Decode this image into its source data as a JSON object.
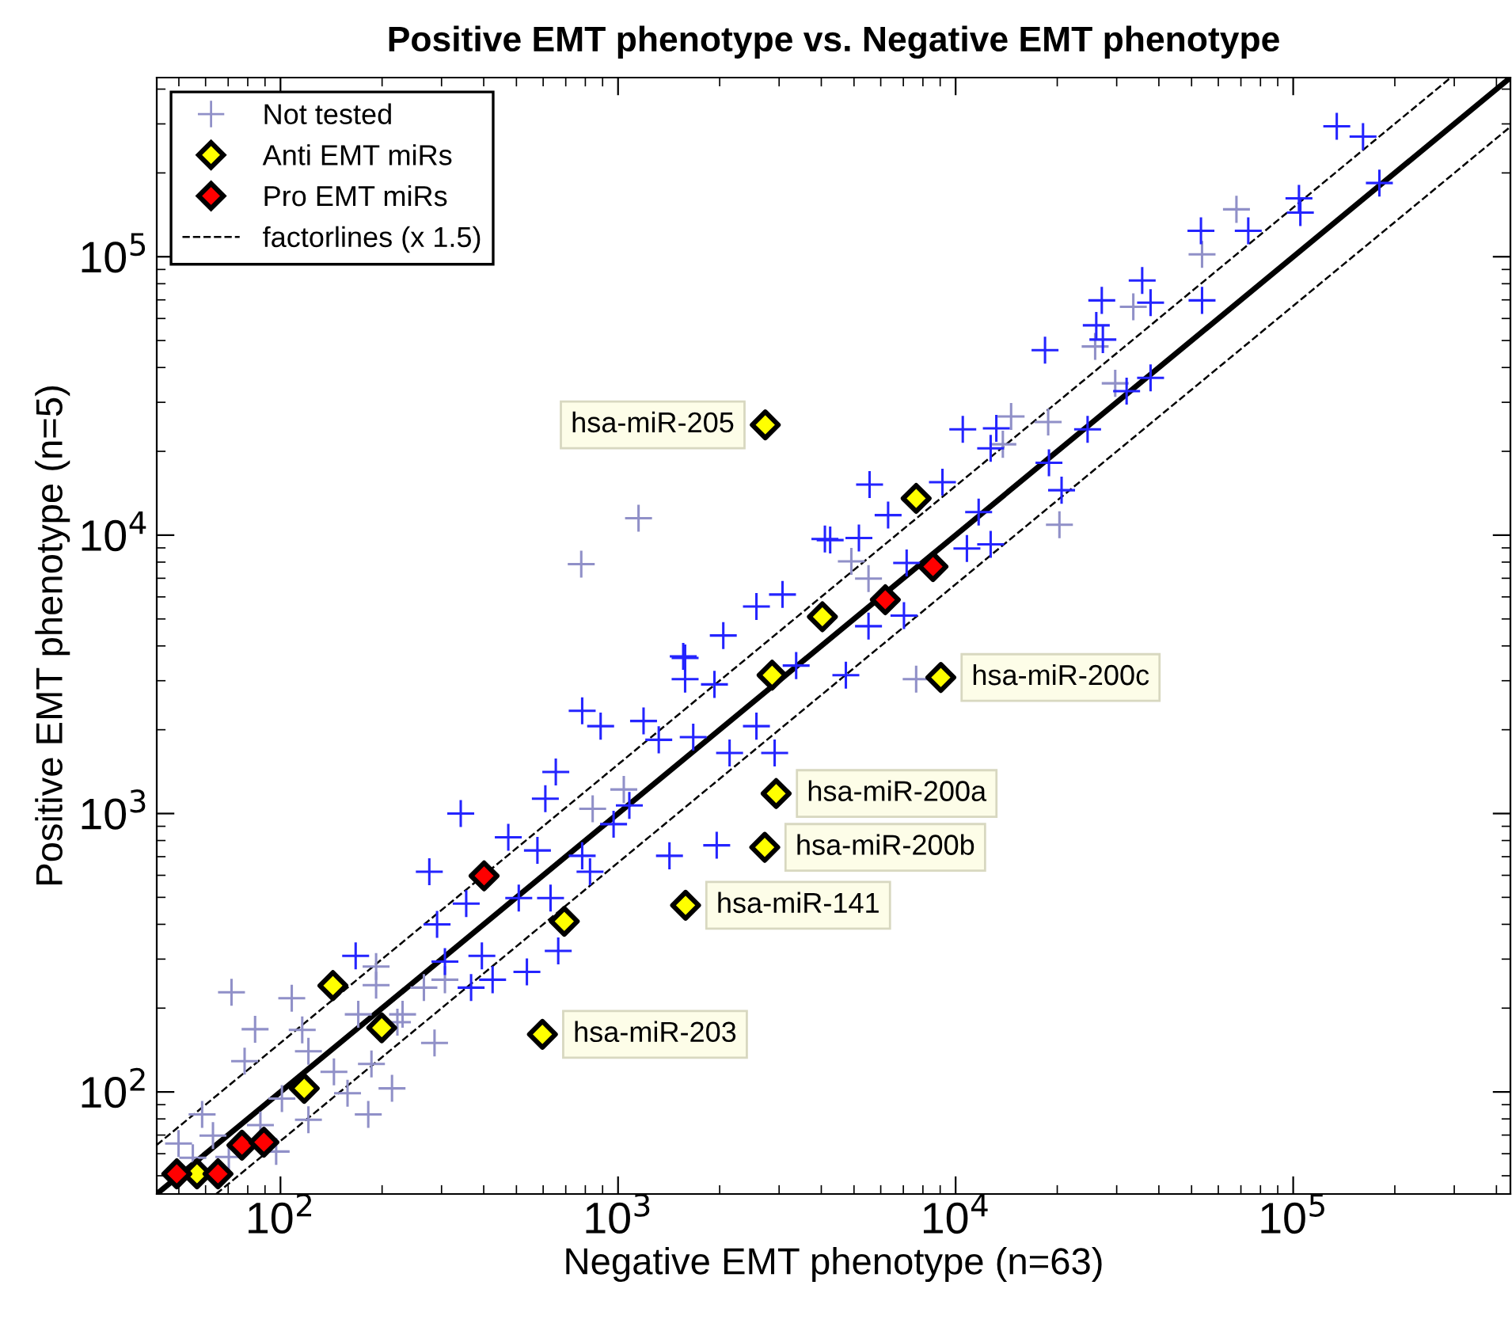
{
  "chart_data": {
    "type": "scatter",
    "title": "Positive EMT phenotype vs. Negative EMT phenotype",
    "xlabel": "Negative EMT phenotype (n=63)",
    "ylabel": "Positive EMT phenotype (n=5)",
    "log": "xy",
    "xlim": [
      43,
      440000
    ],
    "ylim": [
      43,
      440000
    ],
    "xticks": [
      {
        "value": 100,
        "label": "10$^{2}$"
      },
      {
        "value": 1000,
        "label": "10$^{3}$"
      },
      {
        "value": 10000,
        "label": "10$^{4}$"
      },
      {
        "value": 100000,
        "label": "10$^{5}$"
      }
    ],
    "yticks": [
      {
        "value": 100,
        "label": "10$^{2}$"
      },
      {
        "value": 1000,
        "label": "10$^{3}$"
      },
      {
        "value": 10000,
        "label": "10$^{4}$"
      },
      {
        "value": 100000,
        "label": "10$^{5}$"
      }
    ],
    "grid": false,
    "legend": "top left",
    "series": [
      {
        "name": "Not tested",
        "marker": "cross",
        "color": "#9090c8",
        "x": [
          67900,
          53700,
          33600,
          25900,
          29700,
          14600,
          18800,
          13800,
          20300,
          4910,
          5520,
          1150,
          778,
          71.6,
          108,
          84.1,
          121,
          192,
          170,
          222,
          286,
          266,
          307,
          186,
          214,
          158,
          182,
          101,
          87.2,
          63.1,
          58.6,
          49.9,
          70.3,
          97.1,
          78.3,
          121,
          144,
          116,
          230,
          1040,
          841,
          192,
          7640,
          55
        ],
        "values": [
          148000,
          102000,
          66100,
          47600,
          35100,
          26700,
          25500,
          21200,
          10900,
          8050,
          6980,
          11500,
          7870,
          228,
          217,
          168,
          140,
          242,
          190,
          178,
          150,
          237,
          253,
          126,
          103,
          98.9,
          83,
          94.7,
          76,
          69.7,
          83,
          65.3,
          58.4,
          61.1,
          129,
          79.4,
          118,
          167,
          190,
          1220,
          1040,
          282,
          3040,
          58
        ]
      },
      {
        "marker": "cross",
        "color": "#2424ff",
        "x": [
          134600,
          161000,
          180000,
          104000,
          105000,
          73600,
          53300,
          53700,
          35700,
          27100,
          37800,
          26100,
          27300,
          18400,
          32100,
          37800,
          24600,
          10500,
          13200,
          12700,
          18900,
          20600,
          11700,
          12700,
          10800,
          5560,
          9140,
          6310,
          4250,
          5170,
          7160,
          7030,
          5520,
          1560,
          2050,
          2570,
          3070,
          4100,
          1580,
          1580,
          1930,
          3370,
          783,
          888,
          1190,
          1320,
          1670,
          2140,
          2910,
          2570,
          654,
          609,
          342,
          1080,
          1420,
          1960,
          970,
          473,
          577,
          783,
          276,
          355,
          508,
          631,
          291,
          395,
          537,
          367,
          665,
          425,
          167,
          307,
          826,
          4730
        ],
        "values": [
          294000,
          270000,
          184000,
          162000,
          144000,
          124000,
          124000,
          69700,
          82200,
          69700,
          68400,
          56700,
          50400,
          46200,
          32900,
          36700,
          24000,
          24000,
          24200,
          20500,
          18200,
          14500,
          12100,
          9270,
          8950,
          15200,
          15500,
          11800,
          9600,
          9770,
          7950,
          5140,
          4710,
          3670,
          4360,
          5540,
          6120,
          9680,
          3620,
          3040,
          2910,
          3400,
          2340,
          2060,
          2150,
          1840,
          1880,
          1650,
          1650,
          2060,
          1410,
          1130,
          1000,
          1070,
          705,
          769,
          916,
          822,
          737,
          705,
          618,
          475,
          497,
          497,
          400,
          308,
          270,
          237,
          321,
          253,
          308,
          294,
          618,
          3140
        ]
      },
      {
        "name": "Anti EMT miRs",
        "marker": "diamond",
        "color": "#ffff00",
        "x": [
          2730,
          9040,
          2940,
          2720,
          1585,
          597,
          7640,
          2860,
          693,
          143,
          199.5,
          117.6,
          56.6,
          4030
        ],
        "values": [
          24900,
          3080,
          1180,
          756,
          468,
          161,
          13550,
          3140,
          410,
          241,
          170,
          103,
          50.8,
          5090
        ]
      },
      {
        "name": "Pro EMT miRs",
        "marker": "diamond",
        "color": "#ff0000",
        "x": [
          6190,
          8570,
          401,
          76.9,
          89.3,
          49.3,
          65.3
        ],
        "values": [
          5860,
          7710,
          597,
          64.4,
          66.0,
          50.8,
          50.8
        ]
      },
      {
        "type": "line",
        "color": "#000000",
        "line_style": "solid",
        "x": [
          43,
          440000
        ],
        "values": [
          43,
          440000
        ]
      },
      {
        "name": "factorlines (x 1.5)",
        "type": "line",
        "color": "#000000",
        "line_style": "dashed",
        "x": [
          43,
          293000,
          null,
          64.5,
          440000
        ],
        "values": [
          64.5,
          440000,
          null,
          43,
          293000
        ]
      }
    ],
    "annotations": [
      {
        "text": "hsa-miR-205",
        "x": 2730,
        "y": 24900
      },
      {
        "text": "hsa-miR-200c",
        "x": 9040,
        "y": 3080
      },
      {
        "text": "hsa-miR-200a",
        "x": 2940,
        "y": 1180
      },
      {
        "text": "hsa-miR-200b",
        "x": 2720,
        "y": 756
      },
      {
        "text": "hsa-miR-141",
        "x": 1585,
        "y": 468
      },
      {
        "text": "hsa-miR-203",
        "x": 597,
        "y": 161
      }
    ]
  }
}
